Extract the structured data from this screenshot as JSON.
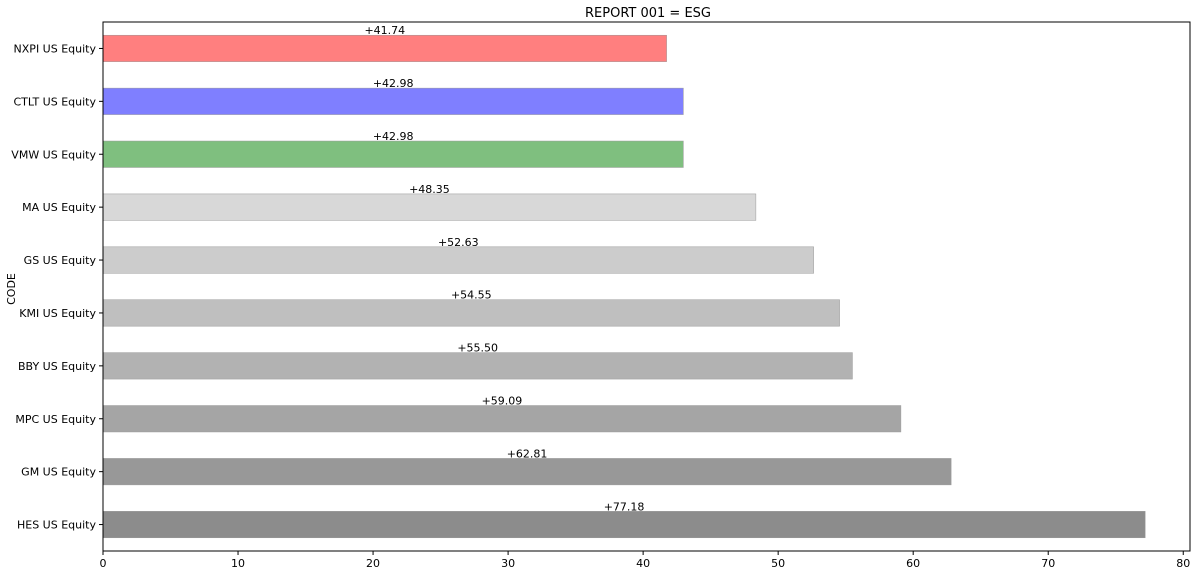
{
  "chart_data": {
    "type": "bar",
    "orientation": "horizontal",
    "title": "REPORT 001 = ESG",
    "xlabel": "",
    "ylabel": "CODE",
    "xlim": [
      0,
      80.5
    ],
    "xticks": [
      0,
      10,
      20,
      30,
      40,
      50,
      60,
      70,
      80
    ],
    "grid": false,
    "categories": [
      "NXPI US Equity",
      "CTLT US Equity",
      "VMW US Equity",
      "MA US Equity",
      "GS US Equity",
      "KMI US Equity",
      "BBY US Equity",
      "MPC US Equity",
      "GM US Equity",
      "HES US Equity"
    ],
    "values": [
      41.74,
      42.98,
      42.98,
      48.35,
      52.63,
      54.55,
      55.5,
      59.09,
      62.81,
      77.18
    ],
    "data_labels": [
      "+41.74",
      "+42.98",
      "+42.98",
      "+48.35",
      "+52.63",
      "+54.55",
      "+55.50",
      "+59.09",
      "+62.81",
      "+77.18"
    ],
    "colors": [
      "#ff7f7f",
      "#7f7fff",
      "#7fbf7f",
      "#d8d8d8",
      "#cccccc",
      "#bfbfbf",
      "#b2b2b2",
      "#a5a5a5",
      "#989898",
      "#8c8c8c"
    ]
  }
}
